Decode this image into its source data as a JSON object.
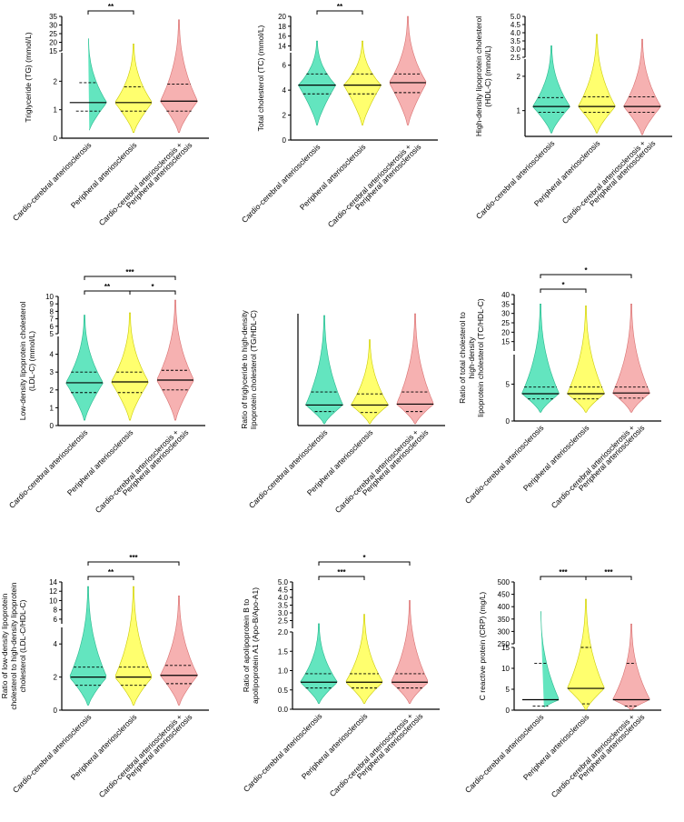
{
  "colors": {
    "cardio": "#48e0b4",
    "peripheral": "#ffff55",
    "both": "#f5a3a3",
    "cardio_stroke": "#26b88c",
    "peripheral_stroke": "#c9c900",
    "both_stroke": "#d86f6f"
  },
  "groups": [
    [
      "Cardio-cerebral arteriosclerosis"
    ],
    [
      "Peripheral arteriosclerosis"
    ],
    [
      "Cardio-cerebral arteriosclerosis +",
      "Peripheral arteriosclerosis"
    ]
  ],
  "chart_data": [
    {
      "type": "violin",
      "ylabel": [
        "Triglyceride (TG) (mmol/L)"
      ],
      "categories": [
        "Cardio-cerebral arteriosclerosis",
        "Peripheral arteriosclerosis",
        "Cardio-cerebral arteriosclerosis + Peripheral arteriosclerosis"
      ],
      "lower_axis": {
        "ylim": [
          0,
          3
        ],
        "ticks": [
          "0",
          "1",
          "2"
        ],
        "tick_values": [
          0,
          1,
          2
        ]
      },
      "upper_axis": {
        "ylim": [
          15,
          35
        ],
        "ticks": [
          "15",
          "20",
          "25",
          "30",
          "35"
        ],
        "tick_values": [
          15,
          20,
          25,
          30,
          35
        ]
      },
      "series": [
        {
          "median": 1.25,
          "q1": 0.95,
          "q3": 1.95,
          "min": 0.2,
          "max": 22
        },
        {
          "median": 1.25,
          "q1": 0.95,
          "q3": 1.8,
          "min": 0.2,
          "max": 19
        },
        {
          "median": 1.3,
          "q1": 0.95,
          "q3": 1.9,
          "min": 0.2,
          "max": 33
        }
      ],
      "significance": [
        {
          "from": 0,
          "to": 1,
          "label": "**"
        }
      ]
    },
    {
      "type": "violin",
      "ylabel": [
        "Total cholesterol (TC) (mmol/L)"
      ],
      "categories": [
        "Cardio-cerebral arteriosclerosis",
        "Peripheral arteriosclerosis",
        "Cardio-cerebral arteriosclerosis + Peripheral arteriosclerosis"
      ],
      "lower_axis": {
        "ylim": [
          0,
          7
        ],
        "ticks": [
          "0",
          "2",
          "4",
          "6"
        ],
        "tick_values": [
          0,
          2,
          4,
          6
        ]
      },
      "upper_axis": {
        "ylim": [
          13,
          20
        ],
        "ticks": [
          "14",
          "16",
          "18",
          "20"
        ],
        "tick_values": [
          14,
          16,
          18,
          20
        ]
      },
      "series": [
        {
          "median": 4.4,
          "q1": 3.7,
          "q3": 5.3,
          "min": 1.2,
          "max": 15
        },
        {
          "median": 4.4,
          "q1": 3.7,
          "q3": 5.3,
          "min": 1.2,
          "max": 15
        },
        {
          "median": 4.6,
          "q1": 3.8,
          "q3": 5.3,
          "min": 1.2,
          "max": 20
        }
      ],
      "significance": [
        {
          "from": 0,
          "to": 1,
          "label": "**"
        },
        {
          "from": 0,
          "to": 2,
          "label": "***"
        }
      ]
    },
    {
      "type": "violin",
      "ylabel": [
        "High-density lipoprotein cholesterol",
        "(HDL-C) (mmol/L)"
      ],
      "categories": [
        "Cardio-cerebral arteriosclerosis",
        "Peripheral arteriosclerosis",
        "Cardio-cerebral arteriosclerosis + Peripheral arteriosclerosis"
      ],
      "lower_axis": {
        "ylim": [
          0.25,
          2.5
        ],
        "ticks": [
          "1",
          "2"
        ],
        "tick_values": [
          1,
          2
        ]
      },
      "upper_axis": {
        "ylim": [
          2.5,
          5.0
        ],
        "ticks": [
          "2.5",
          "3.0",
          "3.5",
          "4.0",
          "4.5",
          "5.0"
        ],
        "tick_values": [
          2.5,
          3.0,
          3.5,
          4.0,
          4.5,
          5.0
        ]
      },
      "series": [
        {
          "median": 1.12,
          "q1": 0.95,
          "q3": 1.38,
          "min": 0.35,
          "max": 3.2
        },
        {
          "median": 1.12,
          "q1": 0.95,
          "q3": 1.4,
          "min": 0.35,
          "max": 3.9
        },
        {
          "median": 1.12,
          "q1": 0.95,
          "q3": 1.4,
          "min": 0.3,
          "max": 3.6
        }
      ],
      "significance": []
    },
    {
      "type": "violin",
      "ylabel": [
        "Low-density lipoprotein cholesterol",
        "(LDL-C) (mmol/L)"
      ],
      "categories": [
        "Cardio-cerebral arteriosclerosis",
        "Peripheral arteriosclerosis",
        "Cardio-cerebral arteriosclerosis + Peripheral arteriosclerosis"
      ],
      "lower_axis": {
        "ylim": [
          0.4,
          5
        ],
        "ticks": [
          "0",
          "1",
          "2",
          "3",
          "4"
        ],
        "tick_values": [
          0,
          1,
          2,
          3,
          4
        ],
        "base": 0
      },
      "upper_axis": {
        "ylim": [
          5,
          10
        ],
        "ticks": [
          "5",
          "6",
          "7",
          "8",
          "9",
          "10"
        ],
        "tick_values": [
          5,
          6,
          7,
          8,
          9,
          10
        ]
      },
      "series": [
        {
          "median": 2.4,
          "q1": 1.85,
          "q3": 3.0,
          "min": 0.3,
          "max": 7.5
        },
        {
          "median": 2.45,
          "q1": 1.85,
          "q3": 3.0,
          "min": 0.3,
          "max": 7.8
        },
        {
          "median": 2.55,
          "q1": 2.0,
          "q3": 3.1,
          "min": 0.3,
          "max": 9.5
        }
      ],
      "significance": [
        {
          "from": 0,
          "to": 1,
          "label": "**"
        },
        {
          "from": 1,
          "to": 2,
          "label": "*"
        },
        {
          "from": 0,
          "to": 2,
          "label": "***"
        }
      ]
    },
    {
      "type": "violin",
      "ylabel": [
        "Ratio of triglyceride to high-density",
        "lipoprotein cholesterol (TG/HDL-C)"
      ],
      "categories": [
        "Cardio-cerebral arteriosclerosis",
        "Peripheral arteriosclerosis",
        "Cardio-cerebral arteriosclerosis + Peripheral arteriosclerosis"
      ],
      "lower_axis": {
        "ylim": [
          0,
          6
        ],
        "ticks": [],
        "tick_values": []
      },
      "series": [
        {
          "median": 1.1,
          "q1": 0.75,
          "q3": 1.8,
          "min": 0.1,
          "max": 5.9
        },
        {
          "median": 1.1,
          "q1": 0.7,
          "q3": 1.7,
          "min": 0.1,
          "max": 4.6
        },
        {
          "median": 1.15,
          "q1": 0.75,
          "q3": 1.8,
          "min": 0.1,
          "max": 6.0
        }
      ],
      "significance": []
    },
    {
      "type": "violin",
      "ylabel": [
        "Ratio of total cholesterol to",
        "high-density",
        "lipoprotein cholesterol (TC/HDL-C)"
      ],
      "categories": [
        "Cardio-cerebral arteriosclerosis",
        "Peripheral arteriosclerosis",
        "Cardio-cerebral arteriosclerosis + Peripheral arteriosclerosis"
      ],
      "lower_axis": {
        "ylim": [
          0,
          9
        ],
        "ticks": [
          "0",
          "5"
        ],
        "tick_values": [
          0,
          5
        ]
      },
      "upper_axis": {
        "ylim": [
          10,
          40
        ],
        "ticks": [
          "15",
          "20",
          "25",
          "30",
          "35",
          "40"
        ],
        "tick_values": [
          15,
          20,
          25,
          30,
          35,
          40
        ]
      },
      "series": [
        {
          "median": 3.7,
          "q1": 3.0,
          "q3": 4.6,
          "min": 1.2,
          "max": 35
        },
        {
          "median": 3.7,
          "q1": 3.0,
          "q3": 4.6,
          "min": 1.2,
          "max": 34
        },
        {
          "median": 3.8,
          "q1": 3.1,
          "q3": 4.6,
          "min": 1.2,
          "max": 35
        }
      ],
      "significance": [
        {
          "from": 0,
          "to": 1,
          "label": "*"
        },
        {
          "from": 0,
          "to": 2,
          "label": "*"
        }
      ]
    },
    {
      "type": "violin",
      "ylabel": [
        "Ratio of low-density lipoprotein",
        "cholesterol to high-density lipoprotein",
        "cholesterol (LDL-C/HDL-C)"
      ],
      "categories": [
        "Cardio-cerebral arteriosclerosis",
        "Peripheral arteriosclerosis",
        "Cardio-cerebral arteriosclerosis + Peripheral arteriosclerosis"
      ],
      "lower_axis": {
        "ylim": [
          0,
          5
        ],
        "ticks": [
          "0",
          "2",
          "4"
        ],
        "tick_values": [
          0,
          2,
          4
        ]
      },
      "upper_axis": {
        "ylim": [
          5,
          14
        ],
        "ticks": [
          "6",
          "8",
          "10",
          "12",
          "14"
        ],
        "tick_values": [
          6,
          8,
          10,
          12,
          14
        ]
      },
      "series": [
        {
          "median": 2.0,
          "q1": 1.5,
          "q3": 2.6,
          "min": 0.3,
          "max": 13
        },
        {
          "median": 2.0,
          "q1": 1.5,
          "q3": 2.6,
          "min": 0.3,
          "max": 13
        },
        {
          "median": 2.1,
          "q1": 1.6,
          "q3": 2.7,
          "min": 0.3,
          "max": 11
        }
      ],
      "significance": [
        {
          "from": 0,
          "to": 1,
          "label": "**"
        },
        {
          "from": 0,
          "to": 2,
          "label": "***"
        }
      ]
    },
    {
      "type": "violin",
      "ylabel": [
        "Ratio of apolipoprotein B to",
        "apolipoprotein A1 (Apo-B/Apo-A1)"
      ],
      "categories": [
        "Cardio-cerebral arteriosclerosis",
        "Peripheral arteriosclerosis",
        "Cardio-cerebral arteriosclerosis + Peripheral arteriosclerosis"
      ],
      "lower_axis": {
        "ylim": [
          0,
          2
        ],
        "ticks": [
          "0.0",
          "0.5",
          "1.0",
          "1.5",
          "2.0"
        ],
        "tick_values": [
          0,
          0.5,
          1.0,
          1.5,
          2.0
        ]
      },
      "upper_axis": {
        "ylim": [
          2.0,
          5.0
        ],
        "ticks": [
          "2.5",
          "3.0",
          "3.5",
          "4.0",
          "4.5",
          "5.0"
        ],
        "tick_values": [
          2.5,
          3.0,
          3.5,
          4.0,
          4.5,
          5.0
        ]
      },
      "series": [
        {
          "median": 0.7,
          "q1": 0.55,
          "q3": 0.92,
          "min": 0.15,
          "max": 2.3
        },
        {
          "median": 0.7,
          "q1": 0.55,
          "q3": 0.92,
          "min": 0.15,
          "max": 2.9
        },
        {
          "median": 0.7,
          "q1": 0.55,
          "q3": 0.92,
          "min": 0.15,
          "max": 3.8
        }
      ],
      "significance": [
        {
          "from": 0,
          "to": 1,
          "label": "***"
        },
        {
          "from": 0,
          "to": 2,
          "label": "*"
        }
      ]
    },
    {
      "type": "violin",
      "ylabel": [
        "C reactive protein (CRP) (mg/L)"
      ],
      "categories": [
        "Cardio-cerebral arteriosclerosis",
        "Peripheral arteriosclerosis",
        "Cardio-cerebral arteriosclerosis + Peripheral arteriosclerosis"
      ],
      "lower_axis": {
        "ylim": [
          0,
          15
        ],
        "ticks": [
          "0",
          "5",
          "10",
          "15"
        ],
        "tick_values": [
          0,
          5,
          10,
          15
        ]
      },
      "upper_axis": {
        "ylim": [
          250,
          500
        ],
        "ticks": [
          "250",
          "300",
          "350",
          "400",
          "450",
          "500"
        ],
        "tick_values": [
          250,
          300,
          350,
          400,
          450,
          500
        ]
      },
      "series": [
        {
          "median": 2.5,
          "q1": 1.0,
          "q3": 11.2,
          "min": 0.1,
          "max": 380
        },
        {
          "median": 5.2,
          "q1": 1.5,
          "q3": 15,
          "min": 0.1,
          "max": 430
        },
        {
          "median": 2.5,
          "q1": 1.0,
          "q3": 11.2,
          "min": 0.1,
          "max": 330
        }
      ],
      "significance": [
        {
          "from": 0,
          "to": 1,
          "label": "***"
        },
        {
          "from": 1,
          "to": 2,
          "label": "***"
        }
      ]
    }
  ]
}
